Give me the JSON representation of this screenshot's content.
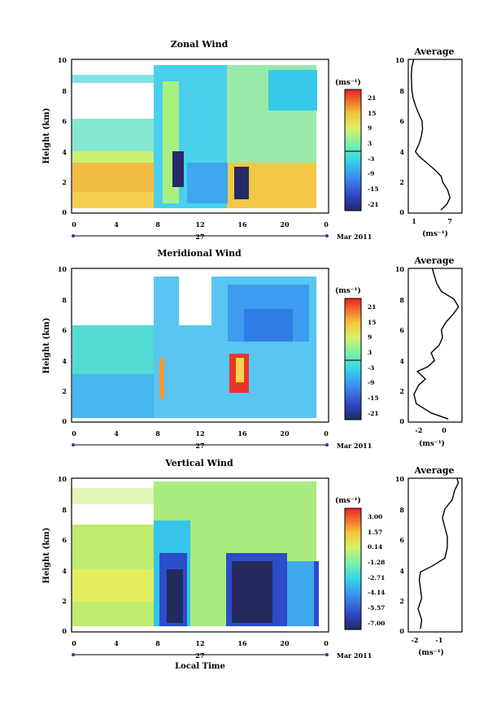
{
  "xlabel_bottom": "Local Time",
  "date_label": "Mar 2011",
  "day_label": "27",
  "chart_data": [
    {
      "type": "heatmap",
      "title": "Zonal Wind",
      "ylabel": "Height (km)",
      "xlim": [
        0,
        24
      ],
      "ylim": [
        0,
        10
      ],
      "x_ticks": [
        "0",
        "4",
        "8",
        "12",
        "16",
        "20",
        "0"
      ],
      "y_ticks": [
        "0",
        "2",
        "4",
        "6",
        "8",
        "10"
      ],
      "colorbar": {
        "unit": "(ms⁻¹)",
        "labels": [
          "21",
          "15",
          "9",
          "3",
          "-3",
          "-9",
          "-15",
          "-21"
        ]
      },
      "average": {
        "title": "Average",
        "xlabel": "(ms⁻¹)",
        "x_ticks": [
          "1",
          "7"
        ],
        "xlim": [
          0,
          9
        ],
        "profile": [
          {
            "x": 5.5,
            "y": 0.2
          },
          {
            "x": 6.5,
            "y": 0.6
          },
          {
            "x": 7.0,
            "y": 1.0
          },
          {
            "x": 6.6,
            "y": 1.5
          },
          {
            "x": 5.8,
            "y": 2.0
          },
          {
            "x": 5.5,
            "y": 2.4
          },
          {
            "x": 4.5,
            "y": 2.8
          },
          {
            "x": 3.0,
            "y": 3.3
          },
          {
            "x": 1.8,
            "y": 3.7
          },
          {
            "x": 1.2,
            "y": 4.0
          },
          {
            "x": 1.8,
            "y": 4.5
          },
          {
            "x": 2.2,
            "y": 5.0
          },
          {
            "x": 2.4,
            "y": 5.5
          },
          {
            "x": 2.3,
            "y": 6.0
          },
          {
            "x": 1.7,
            "y": 6.5
          },
          {
            "x": 1.2,
            "y": 7.0
          },
          {
            "x": 0.8,
            "y": 7.5
          },
          {
            "x": 0.6,
            "y": 8.0
          },
          {
            "x": 0.5,
            "y": 9.0
          },
          {
            "x": 0.6,
            "y": 9.5
          },
          {
            "x": 0.9,
            "y": 10.0
          }
        ]
      }
    },
    {
      "type": "heatmap",
      "title": "Meridional Wind",
      "ylabel": "Height (km)",
      "xlim": [
        0,
        24
      ],
      "ylim": [
        0,
        10
      ],
      "x_ticks": [
        "0",
        "4",
        "8",
        "12",
        "16",
        "20",
        "0"
      ],
      "y_ticks": [
        "0",
        "2",
        "4",
        "6",
        "8",
        "10"
      ],
      "colorbar": {
        "unit": "(ms⁻¹)",
        "labels": [
          "21",
          "15",
          "9",
          "3",
          "-3",
          "-9",
          "-15",
          "-21"
        ]
      },
      "average": {
        "title": "Average",
        "xlabel": "(ms⁻¹)",
        "x_ticks": [
          "-2",
          "0"
        ],
        "xlim": [
          -3.5,
          1.2
        ],
        "profile": [
          {
            "x": 0.0,
            "y": 0.2
          },
          {
            "x": -1.5,
            "y": 0.6
          },
          {
            "x": -2.8,
            "y": 1.2
          },
          {
            "x": -3.0,
            "y": 1.8
          },
          {
            "x": -2.6,
            "y": 2.4
          },
          {
            "x": -2.0,
            "y": 2.8
          },
          {
            "x": -2.7,
            "y": 3.3
          },
          {
            "x": -1.8,
            "y": 3.6
          },
          {
            "x": -1.2,
            "y": 4.0
          },
          {
            "x": -1.5,
            "y": 4.5
          },
          {
            "x": -0.8,
            "y": 5.0
          },
          {
            "x": -0.5,
            "y": 5.5
          },
          {
            "x": -0.6,
            "y": 6.0
          },
          {
            "x": -0.2,
            "y": 6.5
          },
          {
            "x": 0.4,
            "y": 7.0
          },
          {
            "x": 0.9,
            "y": 7.5
          },
          {
            "x": 0.5,
            "y": 8.0
          },
          {
            "x": -0.6,
            "y": 8.5
          },
          {
            "x": -1.0,
            "y": 9.0
          },
          {
            "x": -1.2,
            "y": 9.5
          },
          {
            "x": -1.4,
            "y": 10.0
          }
        ]
      }
    },
    {
      "type": "heatmap",
      "title": "Vertical Wind",
      "ylabel": "Height (km)",
      "xlim": [
        0,
        24
      ],
      "ylim": [
        0,
        10
      ],
      "x_ticks": [
        "0",
        "4",
        "8",
        "12",
        "16",
        "20",
        "0"
      ],
      "y_ticks": [
        "0",
        "2",
        "4",
        "6",
        "8",
        "10"
      ],
      "colorbar": {
        "unit": "(ms⁻¹)",
        "labels": [
          "3.00",
          "1.57",
          "0.14",
          "-1.28",
          "-2.71",
          "-4.14",
          "-5.57",
          "-7.00"
        ]
      },
      "average": {
        "title": "Average",
        "xlabel": "(ms⁻¹)",
        "x_ticks": [
          "-2",
          "-1"
        ],
        "xlim": [
          -2.4,
          -0.2
        ],
        "profile": [
          {
            "x": -1.9,
            "y": 0.2
          },
          {
            "x": -1.85,
            "y": 0.8
          },
          {
            "x": -2.0,
            "y": 1.5
          },
          {
            "x": -1.85,
            "y": 2.2
          },
          {
            "x": -1.9,
            "y": 2.8
          },
          {
            "x": -1.95,
            "y": 3.4
          },
          {
            "x": -1.9,
            "y": 3.9
          },
          {
            "x": -1.4,
            "y": 4.3
          },
          {
            "x": -0.9,
            "y": 4.8
          },
          {
            "x": -0.8,
            "y": 5.5
          },
          {
            "x": -0.8,
            "y": 6.2
          },
          {
            "x": -0.9,
            "y": 6.8
          },
          {
            "x": -1.0,
            "y": 7.4
          },
          {
            "x": -0.9,
            "y": 8.0
          },
          {
            "x": -0.6,
            "y": 8.6
          },
          {
            "x": -0.5,
            "y": 9.2
          },
          {
            "x": -0.35,
            "y": 9.7
          },
          {
            "x": -0.4,
            "y": 10.0
          }
        ]
      }
    }
  ]
}
